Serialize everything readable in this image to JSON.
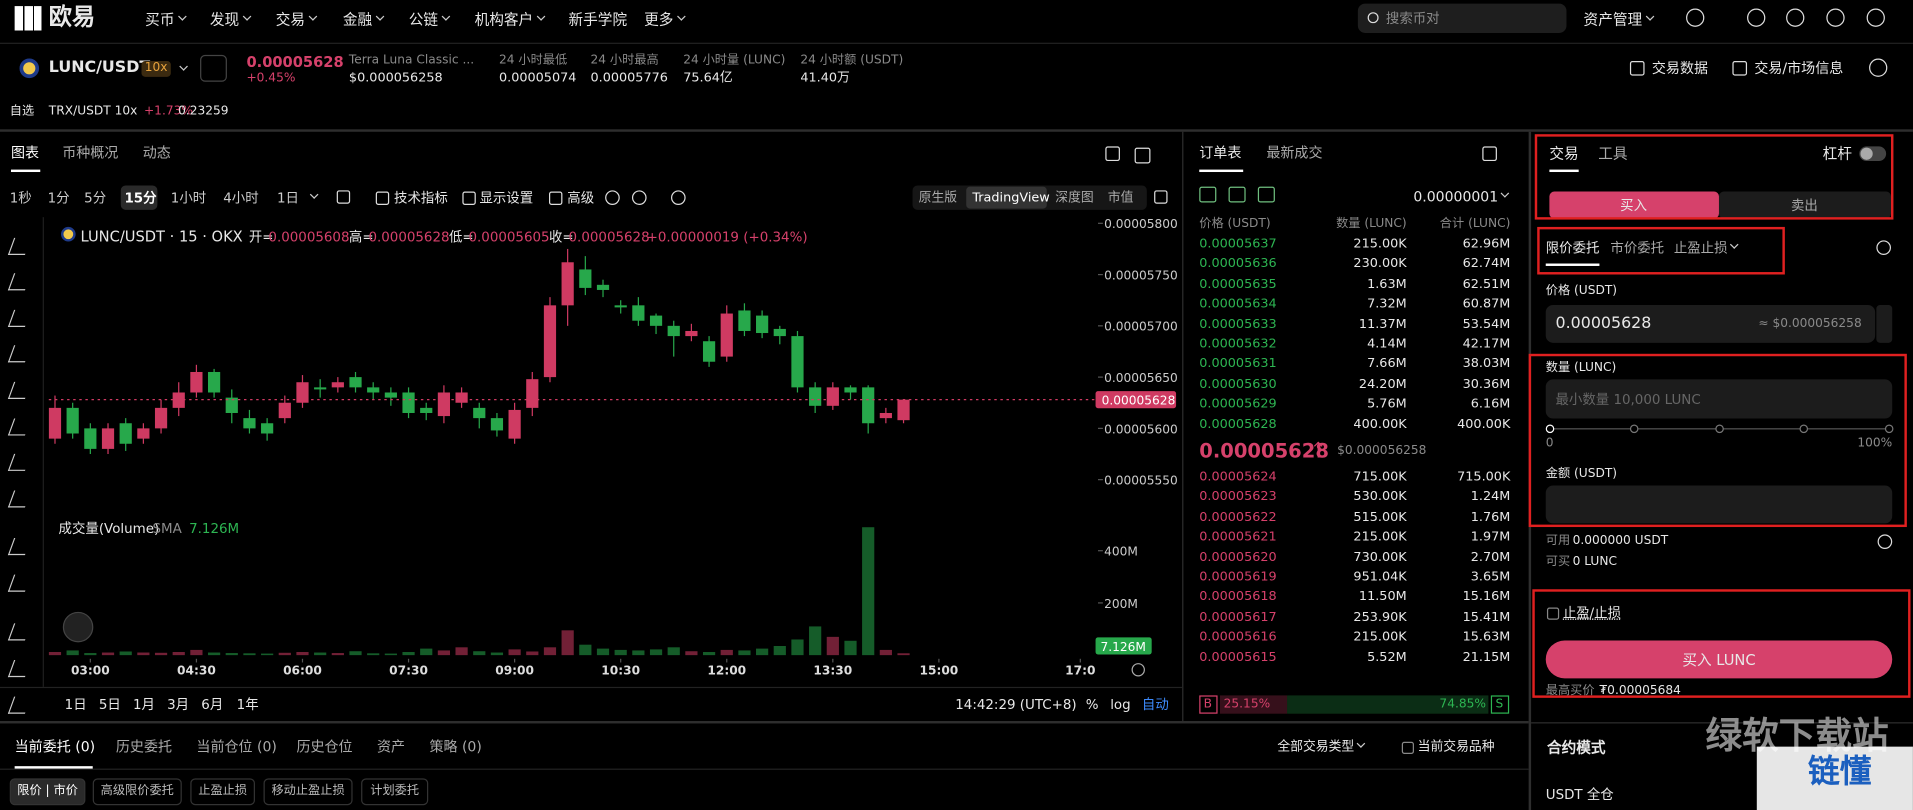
{
  "nav": {
    "logo": "欧易",
    "items": [
      "买币",
      "发现",
      "交易",
      "金融",
      "公链",
      "机构客户",
      "新手学院",
      "更多"
    ],
    "search": "搜索币对",
    "asset_menu": "资产管理"
  },
  "ticker": {
    "pair": "LUNC/USDT",
    "leverage": "10x",
    "price": "0.00005628",
    "change": "+0.45%",
    "name": "Terra Luna Classic ...",
    "usd_price": "$0.000056258",
    "stats": [
      {
        "label": "24 小时最低",
        "value": "0.00005074"
      },
      {
        "label": "24 小时最高",
        "value": "0.00005776"
      },
      {
        "label": "24 小时量 (LUNC)",
        "value": "75.64亿"
      },
      {
        "label": "24 小时额 (USDT)",
        "value": "41.40万"
      }
    ],
    "links": [
      "交易数据",
      "交易/市场信息"
    ]
  },
  "favorites": {
    "label": "自选",
    "pair": "TRX/USDT 10x",
    "change": "+1.73%",
    "price": "0.23259"
  },
  "chart_panel": {
    "tabs": [
      "图表",
      "币种概况",
      "动态"
    ],
    "intervals": [
      "1秒",
      "1分",
      "5分",
      "15分",
      "1小时",
      "4小时",
      "1日"
    ],
    "tools": [
      "技术指标",
      "显示设置",
      "高级"
    ],
    "views": [
      "原生版",
      "TradingView",
      "深度图",
      "市值"
    ],
    "ranges": [
      "1日",
      "5日",
      "1月",
      "3月",
      "6月",
      "1年"
    ],
    "clock": "14:42:29 (UTC+8)",
    "percent": "%",
    "log": "log",
    "auto": "自动"
  },
  "chart_data": {
    "type": "candlestick",
    "legend": {
      "title": "LUNC/USDT · 15 · OKX",
      "ohlc": [
        {
          "label": "开=",
          "value": "0.00005608"
        },
        {
          "label": "高=",
          "value": "0.00005628"
        },
        {
          "label": "低=",
          "value": "0.00005605"
        },
        {
          "label": "收=",
          "value": "0.00005628"
        }
      ],
      "change": "+0.00000019 (+0.34%)"
    },
    "up_color": "#cf3a62",
    "down_color": "#27a84b",
    "open": [
      5.59e-05,
      5.62e-05,
      5.6e-05,
      5.58e-05,
      5.605e-05,
      5.59e-05,
      5.6e-05,
      5.62e-05,
      5.635e-05,
      5.655e-05,
      5.63e-05,
      5.61e-05,
      5.605e-05,
      5.61e-05,
      5.625e-05,
      5.64e-05,
      5.64e-05,
      5.65e-05,
      5.64e-05,
      5.635e-05,
      5.635e-05,
      5.62e-05,
      5.612e-05,
      5.625e-05,
      5.62e-05,
      5.61e-05,
      5.59e-05,
      5.62e-05,
      5.65e-05,
      5.72e-05,
      5.755e-05,
      5.74e-05,
      5.72e-05,
      5.72e-05,
      5.71e-05,
      5.7e-05,
      5.69e-05,
      5.685e-05,
      5.67e-05,
      5.715e-05,
      5.71e-05,
      5.697e-05,
      5.69e-05,
      5.64e-05,
      5.622e-05,
      5.64e-05,
      5.64e-05,
      5.61e-05,
      5.608e-05
    ],
    "high": [
      5.632e-05,
      5.625e-05,
      5.605e-05,
      5.605e-05,
      5.61e-05,
      5.605e-05,
      5.628e-05,
      5.645e-05,
      5.662e-05,
      5.658e-05,
      5.638e-05,
      5.618e-05,
      5.61e-05,
      5.632e-05,
      5.652e-05,
      5.648e-05,
      5.65e-05,
      5.655e-05,
      5.645e-05,
      5.64e-05,
      5.64e-05,
      5.625e-05,
      5.642e-05,
      5.64e-05,
      5.625e-05,
      5.615e-05,
      5.625e-05,
      5.655e-05,
      5.728e-05,
      5.775e-05,
      5.768e-05,
      5.745e-05,
      5.725e-05,
      5.728e-05,
      5.712e-05,
      5.705e-05,
      5.702e-05,
      5.69e-05,
      5.72e-05,
      5.722e-05,
      5.715e-05,
      5.7e-05,
      5.695e-05,
      5.645e-05,
      5.645e-05,
      5.642e-05,
      5.642e-05,
      5.62e-05,
      5.628e-05
    ],
    "low": [
      5.585e-05,
      5.59e-05,
      5.575e-05,
      5.575e-05,
      5.578e-05,
      5.585e-05,
      5.595e-05,
      5.612e-05,
      5.63e-05,
      5.63e-05,
      5.605e-05,
      5.595e-05,
      5.588e-05,
      5.605e-05,
      5.62e-05,
      5.63e-05,
      5.635e-05,
      5.635e-05,
      5.628e-05,
      5.622e-05,
      5.61e-05,
      5.608e-05,
      5.605e-05,
      5.62e-05,
      5.6e-05,
      5.592e-05,
      5.585e-05,
      5.612e-05,
      5.645e-05,
      5.7e-05,
      5.73e-05,
      5.728e-05,
      5.712e-05,
      5.7e-05,
      5.692e-05,
      5.67e-05,
      5.685e-05,
      5.66e-05,
      5.665e-05,
      5.69e-05,
      5.688e-05,
      5.682e-05,
      5.635e-05,
      5.615e-05,
      5.618e-05,
      5.628e-05,
      5.595e-05,
      5.605e-05,
      5.605e-05
    ],
    "close": [
      5.62e-05,
      5.595e-05,
      5.58e-05,
      5.6e-05,
      5.585e-05,
      5.6e-05,
      5.62e-05,
      5.635e-05,
      5.655e-05,
      5.635e-05,
      5.615e-05,
      5.6e-05,
      5.595e-05,
      5.625e-05,
      5.645e-05,
      5.638e-05,
      5.645e-05,
      5.64e-05,
      5.635e-05,
      5.63e-05,
      5.615e-05,
      5.615e-05,
      5.635e-05,
      5.635e-05,
      5.61e-05,
      5.598e-05,
      5.618e-05,
      5.648e-05,
      5.72e-05,
      5.762e-05,
      5.737e-05,
      5.735e-05,
      5.718e-05,
      5.705e-05,
      5.7e-05,
      5.69e-05,
      5.695e-05,
      5.665e-05,
      5.712e-05,
      5.695e-05,
      5.693e-05,
      5.69e-05,
      5.64e-05,
      5.622e-05,
      5.64e-05,
      5.635e-05,
      5.605e-05,
      5.615e-05,
      5.628e-05
    ],
    "volume": [
      12000000,
      18000000,
      8000000,
      10000000,
      14000000,
      10000000,
      9000000,
      12000000,
      20000000,
      10000000,
      8000000,
      7000000,
      6000000,
      9000000,
      12000000,
      10000000,
      8000000,
      15000000,
      7000000,
      6000000,
      12000000,
      25000000,
      18000000,
      30000000,
      15000000,
      10000000,
      22000000,
      14000000,
      30000000,
      95000000,
      40000000,
      25000000,
      20000000,
      18000000,
      22000000,
      30000000,
      15000000,
      12000000,
      20000000,
      18000000,
      25000000,
      35000000,
      60000000,
      110000000,
      70000000,
      55000000,
      490000000,
      20000000,
      7126000
    ],
    "xlim": [
      -0.35,
      59
    ],
    "xticks": [
      {
        "value": 2,
        "label": "03:00"
      },
      {
        "value": 8,
        "label": "04:30"
      },
      {
        "value": 14,
        "label": "06:00"
      },
      {
        "value": 20,
        "label": "07:30"
      },
      {
        "value": 26,
        "label": "09:00"
      },
      {
        "value": 32,
        "label": "10:30"
      },
      {
        "value": 38,
        "label": "12:00"
      },
      {
        "value": 44,
        "label": "13:30"
      },
      {
        "value": 50,
        "label": "15:00"
      },
      {
        "value": 58,
        "label": "17:0"
      }
    ],
    "ylim": [
      5.524e-05,
      5.806e-05
    ],
    "yticks": [
      {
        "value": 5.55e-05,
        "label": "0.00005550"
      },
      {
        "value": 5.6e-05,
        "label": "0.00005600"
      },
      {
        "value": 5.65e-05,
        "label": "0.00005650"
      },
      {
        "value": 5.7e-05,
        "label": "0.00005700"
      },
      {
        "value": 5.75e-05,
        "label": "0.00005750"
      },
      {
        "value": 5.8e-05,
        "label": "0.00005800"
      }
    ],
    "y2lim": [
      0,
      500000000
    ],
    "y2ticks": [
      {
        "value": 200000000,
        "label": "200M"
      },
      {
        "value": 400000000,
        "label": "400M"
      }
    ],
    "last_price": {
      "value": 5.628e-05,
      "label": "0.00005628"
    },
    "volume_legend": {
      "name": "成交量(Volume)",
      "sma": "SMA",
      "sma_value": "7.126M"
    },
    "last_volume": {
      "value": 7126000,
      "label": "7.126M"
    }
  },
  "order_book": {
    "tabs": [
      "订单表",
      "最新成交"
    ],
    "precision": "0.00000001",
    "columns": [
      "价格 (USDT)",
      "数量 (LUNC)",
      "合计 (LUNC)"
    ],
    "asks": [
      [
        "0.00005637",
        "215.00K",
        "62.96M"
      ],
      [
        "0.00005636",
        "230.00K",
        "62.74M"
      ],
      [
        "0.00005635",
        "1.63M",
        "62.51M"
      ],
      [
        "0.00005634",
        "7.32M",
        "60.87M"
      ],
      [
        "0.00005633",
        "11.37M",
        "53.54M"
      ],
      [
        "0.00005632",
        "4.14M",
        "42.17M"
      ],
      [
        "0.00005631",
        "7.66M",
        "38.03M"
      ],
      [
        "0.00005630",
        "24.20M",
        "30.36M"
      ],
      [
        "0.00005629",
        "5.76M",
        "6.16M"
      ],
      [
        "0.00005628",
        "400.00K",
        "400.00K"
      ]
    ],
    "last_price": "0.00005628",
    "last_usd": "$0.000056258",
    "bids": [
      [
        "0.00005624",
        "715.00K",
        "715.00K"
      ],
      [
        "0.00005623",
        "530.00K",
        "1.24M"
      ],
      [
        "0.00005622",
        "515.00K",
        "1.76M"
      ],
      [
        "0.00005621",
        "215.00K",
        "1.97M"
      ],
      [
        "0.00005620",
        "730.00K",
        "2.70M"
      ],
      [
        "0.00005619",
        "951.04K",
        "3.65M"
      ],
      [
        "0.00005618",
        "11.50M",
        "15.16M"
      ],
      [
        "0.00005617",
        "253.90K",
        "15.41M"
      ],
      [
        "0.00005616",
        "215.00K",
        "15.63M"
      ],
      [
        "0.00005615",
        "5.52M",
        "21.15M"
      ]
    ],
    "buy_ratio": {
      "name": "B",
      "value": 25.15,
      "label": "25.15%"
    },
    "sell_ratio": {
      "name": "S",
      "value": 74.85,
      "label": "74.85%"
    }
  },
  "trade": {
    "tabs": [
      "交易",
      "工具"
    ],
    "leverage_label": "杠杆",
    "sides": [
      "买入",
      "卖出"
    ],
    "order_types": [
      "限价委托",
      "市价委托",
      "止盈止损"
    ],
    "price_label": "价格 (USDT)",
    "price_value": "0.00005628",
    "price_usd": "≈ $0.000056258",
    "qty_label": "数量 (LUNC)",
    "qty_placeholder": "最小数量 10,000 LUNC",
    "slider_min": "0",
    "slider_max": "100%",
    "amount_label": "金额 (USDT)",
    "available": {
      "label": "可用",
      "value": "0.000000 USDT"
    },
    "can_buy": {
      "label": "可买",
      "value": "0 LUNC"
    },
    "tpsl": "止盈/止损",
    "submit": "买入 LUNC",
    "max_price": {
      "label": "最高买价",
      "value": "₮0.00005684"
    },
    "mode_title": "合约模式",
    "mode_value": "USDT 全仓"
  },
  "orders": {
    "tabs": [
      "当前委托 (0)",
      "历史委托",
      "当前仓位 (0)",
      "历史仓位",
      "资产",
      "策略 (0)"
    ],
    "filter": "全部交易类型",
    "current_only": "当前交易品种",
    "subtabs": [
      "限价 | 市价",
      "高级限价委托",
      "止盈止损",
      "移动止盈止损",
      "计划委托"
    ]
  },
  "watermark": [
    "绿软下载站",
    "链懂"
  ]
}
